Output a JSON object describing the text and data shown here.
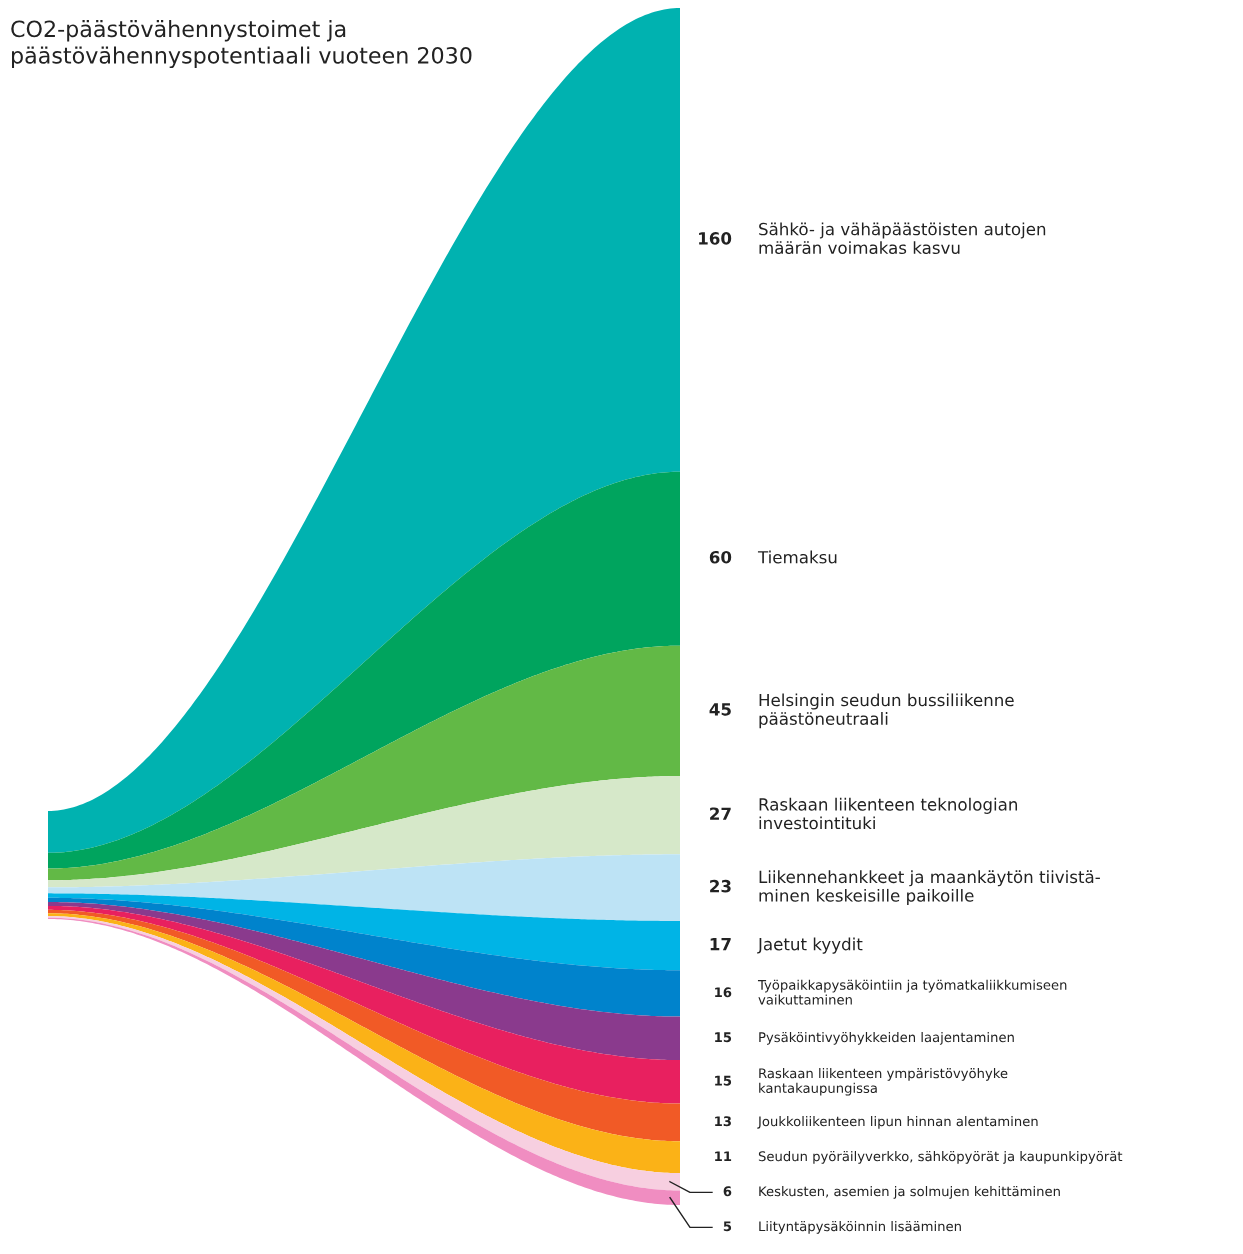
{
  "chart_data": {
    "type": "other",
    "title": "CO2-päästövähennystoimet ja\npäästövähennyspotentiaali vuoteen 2030",
    "categories": [
      "Sähkö- ja vähäpäästöisten autojen\nmäärän voimakas kasvu",
      "Tiemaksu",
      "Helsingin seudun bussiliikenne\npäästöneutraali",
      "Raskaan liikenteen teknologian\ninvestointituki",
      "Liikennehankkeet ja maankäytön tiivistä-\nminen keskeisille paikoille",
      "Jaetut kyydit",
      "Työpaikkapysäköintiin ja työmatkaliikkumiseen\nvaikuttaminen",
      "Pysäköintivyöhykkeiden laajentaminen",
      "Raskaan liikenteen ympäristövyöhyke\nkantakaupungissa",
      "Joukkoliikenteen lipun hinnan alentaminen",
      "Seudun pyöräilyverkko, sähköpyörät ja kaupunkipyörät",
      "Keskusten, asemien ja solmujen kehittäminen",
      "Liityntäpysäköinnin lisääminen"
    ],
    "values": [
      160,
      60,
      45,
      27,
      23,
      17,
      16,
      15,
      15,
      13,
      11,
      6,
      5
    ],
    "colors": [
      "#00b2b0",
      "#00a45e",
      "#62b946",
      "#d6e8c9",
      "#bde3f5",
      "#00b4e6",
      "#0083cc",
      "#8a3a8d",
      "#e8205f",
      "#f15a26",
      "#fbb217",
      "#f7cfe0",
      "#f08dc1"
    ],
    "data_labels": true
  }
}
